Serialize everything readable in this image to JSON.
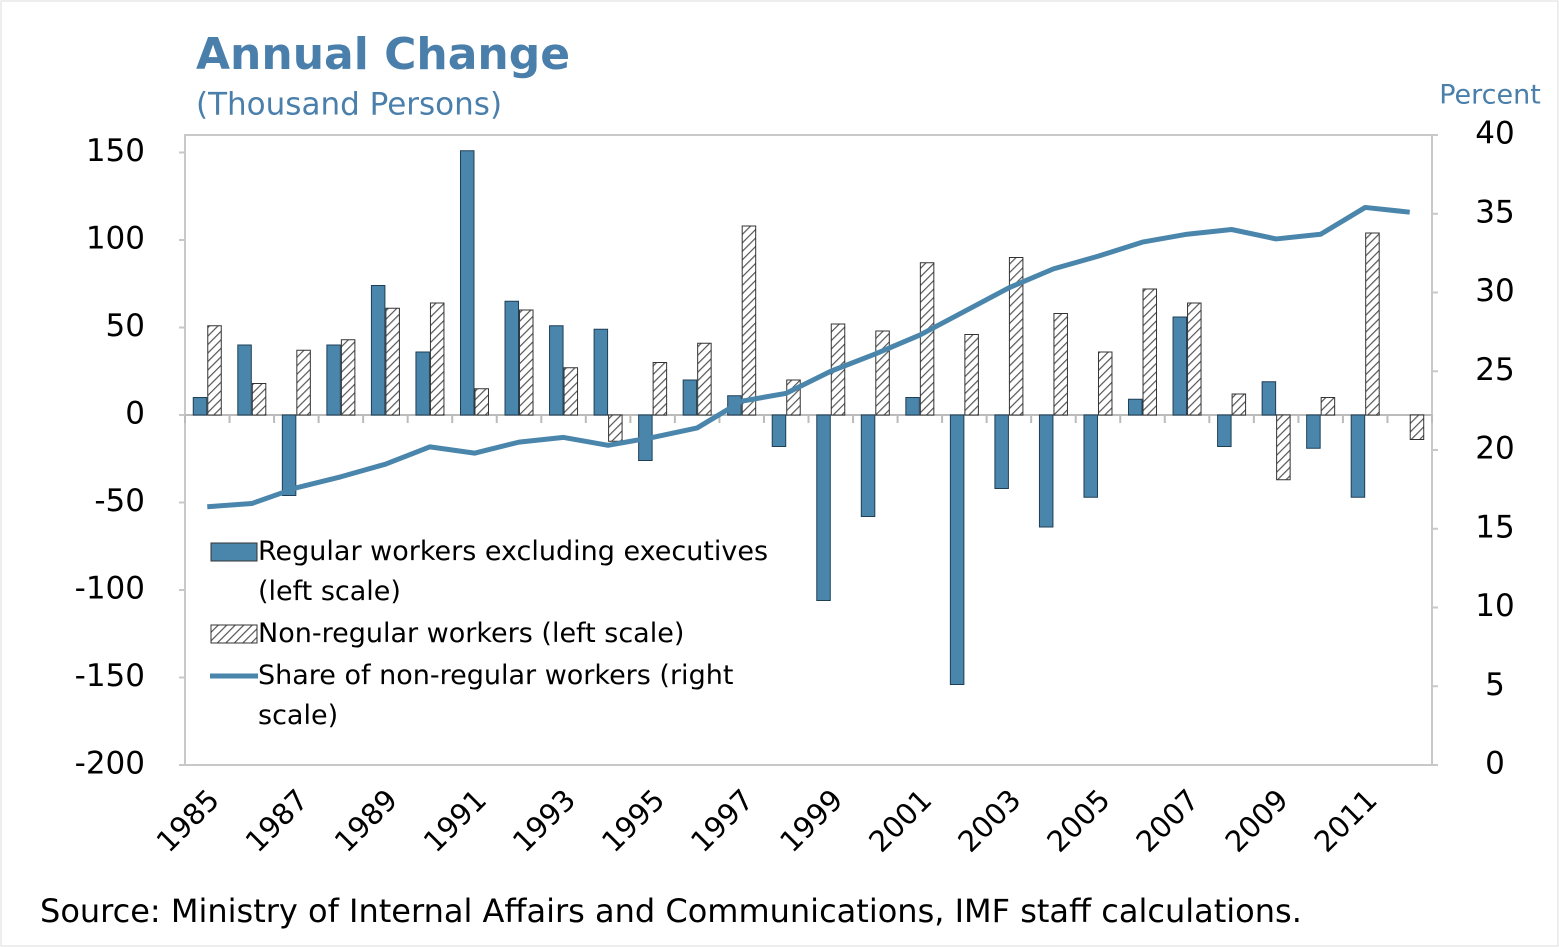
{
  "chart_data": {
    "type": "bar",
    "title": "Annual Change",
    "subtitle": "(Thousand Persons)",
    "y2_label": "Percent",
    "source": "Source: Ministry of Internal Affairs and Communications,  IMF staff calculations.",
    "categories": [
      "1985",
      null,
      "1987",
      null,
      "1989",
      null,
      "1991",
      null,
      "1993",
      null,
      "1995",
      null,
      "1997",
      null,
      "1999",
      null,
      "2001",
      null,
      "2003",
      null,
      "2005",
      null,
      "2007",
      null,
      "2009",
      null,
      "2011",
      null
    ],
    "series": [
      {
        "name": "Regular workers excluding executives (left scale)",
        "color": "#4a86ac",
        "type": "bar",
        "values": [
          10,
          40,
          -46,
          40,
          74,
          36,
          151,
          65,
          51,
          49,
          -26,
          20,
          11,
          -18,
          -106,
          -58,
          10,
          -154,
          -42,
          -64,
          -47,
          9,
          56,
          -18,
          19,
          -19,
          -47,
          null
        ]
      },
      {
        "name": "Non-regular workers (left scale)",
        "color": "#555555",
        "type": "bar",
        "hatched": true,
        "values": [
          51,
          18,
          37,
          43,
          61,
          64,
          15,
          60,
          27,
          -15,
          30,
          41,
          108,
          20,
          52,
          48,
          87,
          46,
          90,
          58,
          36,
          72,
          64,
          12,
          -37,
          10,
          104,
          -14
        ]
      },
      {
        "name": "Share of non-regular workers (right scale)",
        "color": "#4a86ac",
        "type": "line",
        "axis": "y2",
        "values": [
          16.4,
          16.6,
          17.6,
          18.3,
          19.1,
          20.2,
          19.8,
          20.5,
          20.8,
          20.3,
          20.8,
          21.4,
          23.1,
          23.6,
          25.0,
          26.1,
          27.3,
          28.8,
          30.3,
          31.5,
          32.3,
          33.2,
          33.7,
          34.0,
          33.4,
          33.7,
          35.4,
          35.1
        ]
      }
    ],
    "ylim": [
      -200,
      160
    ],
    "yticks": [
      -200,
      -150,
      -100,
      -50,
      0,
      50,
      100,
      150
    ],
    "y2lim": [
      0,
      40
    ],
    "y2ticks": [
      0,
      5,
      10,
      15,
      20,
      25,
      30,
      35,
      40
    ],
    "title_color": "#4a7fab"
  }
}
